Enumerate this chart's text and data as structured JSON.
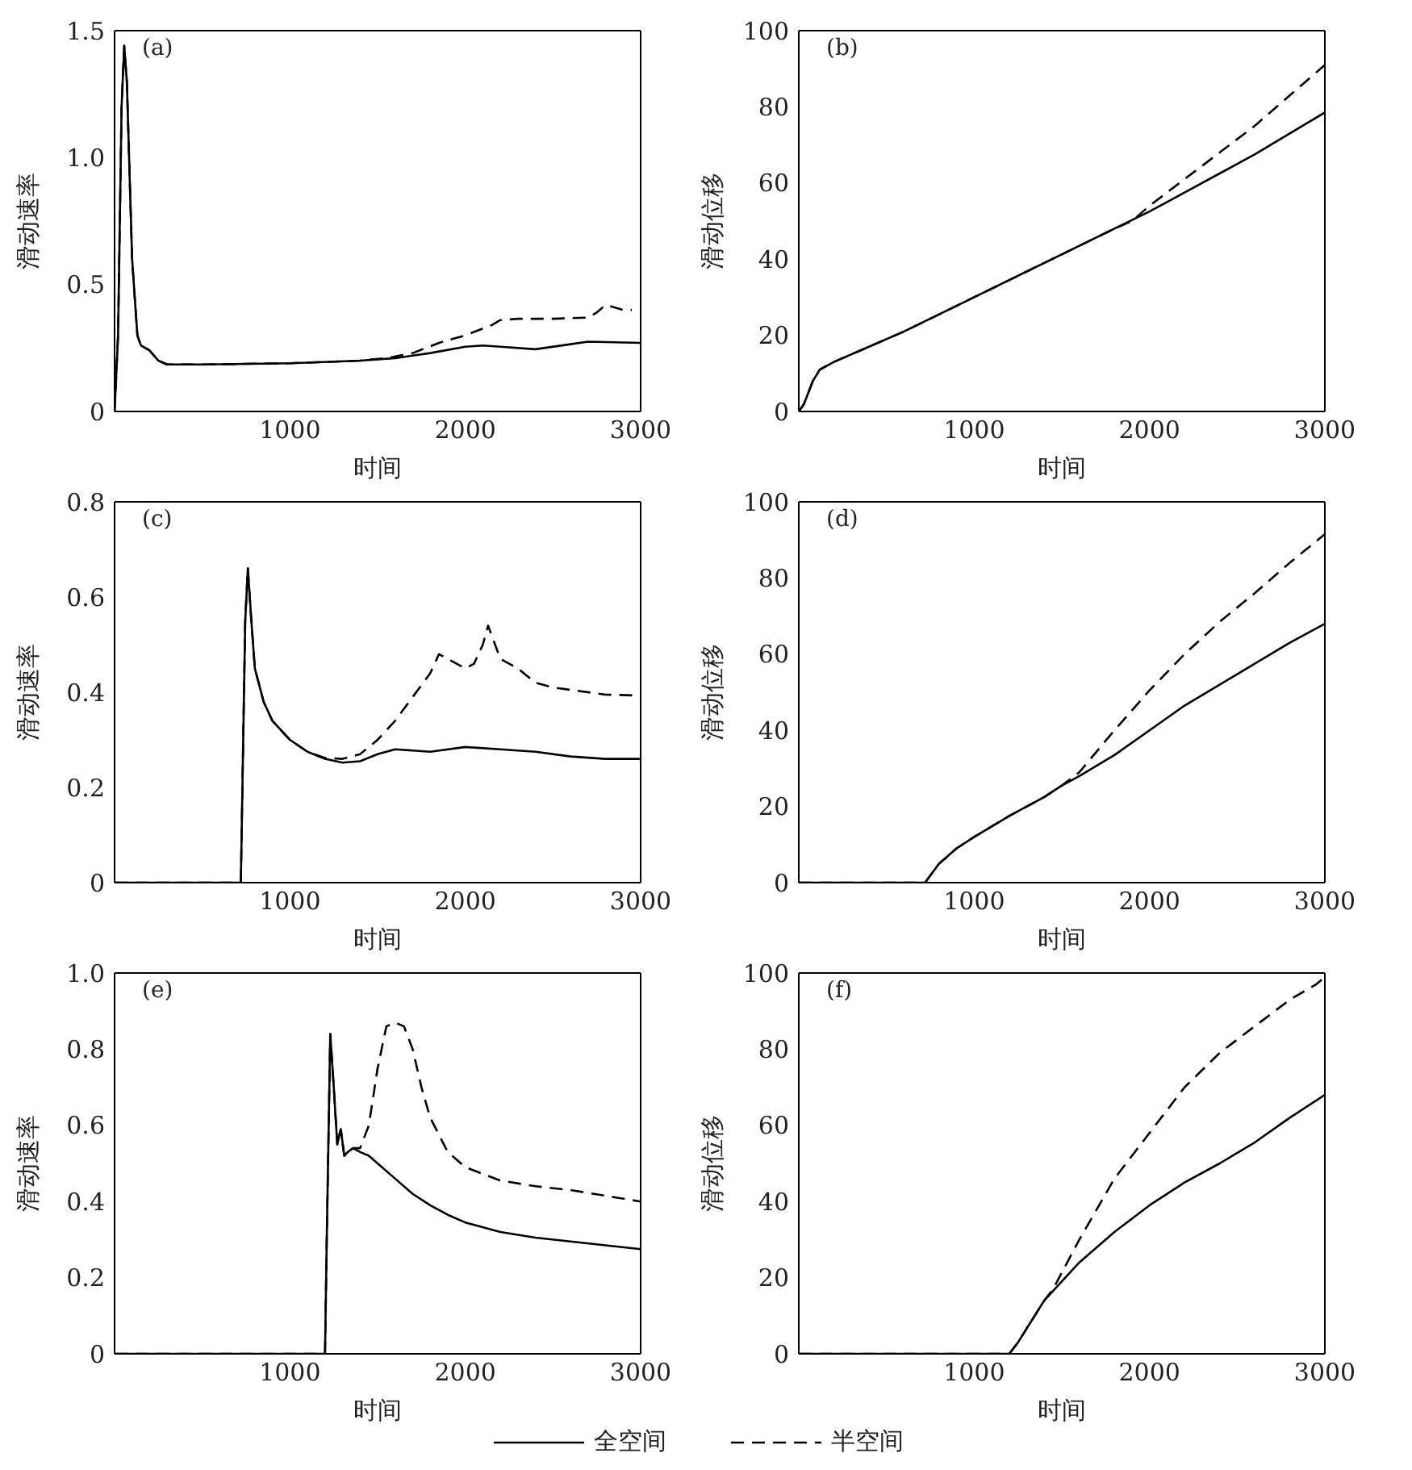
{
  "chart_data": [
    {
      "type": "line",
      "annotations": [
        "(a)"
      ],
      "xlabel": "时间",
      "ylabel": "滑动速率",
      "xlim": [
        0,
        3000
      ],
      "xticks": [
        1000,
        2000,
        3000
      ],
      "ylim": [
        0,
        1.5
      ],
      "yticks": [
        0,
        0.5,
        {
          "value": 1,
          "label": "1.0"
        },
        1.5
      ],
      "marker": "none",
      "series": [
        {
          "color": "#000000",
          "line_style": "solid",
          "x": [
            0,
            20,
            40,
            55,
            70,
            100,
            130,
            150,
            200,
            250,
            300,
            500,
            1000,
            1400,
            1600,
            1800,
            2000,
            2100,
            2200,
            2400,
            2600,
            2700,
            3000
          ],
          "values": [
            0,
            0.3,
            1.2,
            1.44,
            1.3,
            0.6,
            0.3,
            0.26,
            0.24,
            0.2,
            0.185,
            0.185,
            0.19,
            0.2,
            0.21,
            0.23,
            0.255,
            0.26,
            0.255,
            0.245,
            0.265,
            0.275,
            0.27
          ]
        },
        {
          "color": "#000000",
          "line_style": "dashed",
          "x": [
            0,
            20,
            40,
            55,
            70,
            100,
            130,
            150,
            200,
            250,
            300,
            500,
            1000,
            1400,
            1550,
            1700,
            1850,
            2000,
            2150,
            2200,
            2300,
            2500,
            2700,
            2750,
            2800,
            2850,
            2900,
            2950
          ],
          "values": [
            0,
            0.3,
            1.2,
            1.44,
            1.3,
            0.6,
            0.3,
            0.26,
            0.24,
            0.2,
            0.185,
            0.185,
            0.19,
            0.2,
            0.21,
            0.23,
            0.27,
            0.3,
            0.34,
            0.36,
            0.365,
            0.365,
            0.37,
            0.39,
            0.42,
            0.41,
            0.4,
            0.4
          ]
        }
      ]
    },
    {
      "type": "line",
      "annotations": [
        "(b)"
      ],
      "xlabel": "时间",
      "ylabel": "滑动位移",
      "xlim": [
        0,
        3000
      ],
      "xticks": [
        1000,
        2000,
        3000
      ],
      "ylim": [
        0,
        100
      ],
      "yticks": [
        0,
        20,
        40,
        60,
        80,
        100
      ],
      "marker": "none",
      "series": [
        {
          "color": "#000000",
          "line_style": "solid",
          "x": [
            0,
            30,
            80,
            120,
            200,
            400,
            600,
            800,
            1000,
            1200,
            1400,
            1600,
            1800,
            2000,
            2200,
            2400,
            2600,
            2800,
            3000
          ],
          "values": [
            0,
            2,
            8,
            11,
            13,
            17,
            21,
            25.5,
            30,
            34.5,
            39,
            43.5,
            48,
            52.5,
            57.5,
            62.5,
            67.5,
            73,
            78.5
          ]
        },
        {
          "color": "#000000",
          "line_style": "dashed",
          "x": [
            0,
            30,
            80,
            120,
            200,
            400,
            600,
            800,
            1000,
            1200,
            1400,
            1600,
            1800,
            1900,
            2000,
            2200,
            2400,
            2600,
            2800,
            3000
          ],
          "values": [
            0,
            2,
            8,
            11,
            13,
            17,
            21,
            25.5,
            30,
            34.5,
            39,
            43.5,
            48,
            50,
            54,
            61,
            68,
            75,
            83,
            91
          ]
        }
      ]
    },
    {
      "type": "line",
      "annotations": [
        "(c)"
      ],
      "xlabel": "时间",
      "ylabel": "滑动速率",
      "xlim": [
        0,
        3000
      ],
      "xticks": [
        1000,
        2000,
        3000
      ],
      "ylim": [
        0,
        0.8
      ],
      "yticks": [
        0,
        0.2,
        0.4,
        0.6,
        0.8
      ],
      "marker": "none",
      "series": [
        {
          "color": "#000000",
          "line_style": "solid",
          "x": [
            0,
            720,
            745,
            760,
            780,
            800,
            850,
            900,
            1000,
            1100,
            1200,
            1300,
            1400,
            1500,
            1600,
            1800,
            2000,
            2200,
            2400,
            2600,
            2800,
            3000
          ],
          "values": [
            0,
            0,
            0.55,
            0.66,
            0.55,
            0.45,
            0.38,
            0.34,
            0.3,
            0.275,
            0.26,
            0.252,
            0.255,
            0.27,
            0.28,
            0.275,
            0.285,
            0.28,
            0.275,
            0.265,
            0.26,
            0.26
          ]
        },
        {
          "color": "#000000",
          "line_style": "dashed",
          "x": [
            0,
            720,
            745,
            760,
            780,
            800,
            850,
            900,
            1000,
            1100,
            1200,
            1300,
            1400,
            1500,
            1600,
            1700,
            1800,
            1850,
            1900,
            2000,
            2050,
            2100,
            2130,
            2170,
            2200,
            2300,
            2400,
            2500,
            2600,
            2800,
            3000
          ],
          "values": [
            0,
            0,
            0.55,
            0.66,
            0.55,
            0.45,
            0.38,
            0.34,
            0.3,
            0.275,
            0.262,
            0.26,
            0.27,
            0.3,
            0.34,
            0.39,
            0.44,
            0.48,
            0.47,
            0.45,
            0.46,
            0.5,
            0.54,
            0.5,
            0.47,
            0.45,
            0.42,
            0.41,
            0.405,
            0.395,
            0.393
          ]
        }
      ]
    },
    {
      "type": "line",
      "annotations": [
        "(d)"
      ],
      "xlabel": "时间",
      "ylabel": "滑动位移",
      "xlim": [
        0,
        3000
      ],
      "xticks": [
        1000,
        2000,
        3000
      ],
      "ylim": [
        0,
        100
      ],
      "yticks": [
        0,
        20,
        40,
        60,
        80,
        100
      ],
      "marker": "none",
      "series": [
        {
          "color": "#000000",
          "line_style": "solid",
          "x": [
            0,
            720,
            800,
            900,
            1000,
            1200,
            1400,
            1500,
            1600,
            1800,
            2000,
            2200,
            2400,
            2600,
            2800,
            3000
          ],
          "values": [
            0,
            0,
            5,
            9,
            12,
            17.5,
            22.5,
            25.5,
            28,
            33.5,
            40,
            46.5,
            52,
            57.5,
            63,
            68
          ]
        },
        {
          "color": "#000000",
          "line_style": "dashed",
          "x": [
            0,
            720,
            800,
            900,
            1000,
            1200,
            1400,
            1500,
            1600,
            1800,
            2000,
            2200,
            2400,
            2600,
            2800,
            3000
          ],
          "values": [
            0,
            0,
            5,
            9,
            12,
            17.5,
            22.5,
            25.5,
            29,
            40,
            50.5,
            60,
            68.5,
            76,
            84,
            91.5
          ]
        }
      ]
    },
    {
      "type": "line",
      "annotations": [
        "(e)"
      ],
      "xlabel": "时间",
      "ylabel": "滑动速率",
      "xlim": [
        0,
        3000
      ],
      "xticks": [
        1000,
        2000,
        3000
      ],
      "ylim": [
        0,
        1
      ],
      "yticks": [
        0,
        0.2,
        0.4,
        0.6,
        0.8,
        {
          "value": 1,
          "label": "1.0"
        }
      ],
      "marker": "none",
      "series": [
        {
          "color": "#000000",
          "line_style": "solid",
          "x": [
            0,
            1200,
            1210,
            1230,
            1250,
            1270,
            1290,
            1310,
            1330,
            1360,
            1400,
            1450,
            1500,
            1600,
            1700,
            1800,
            1900,
            2000,
            2200,
            2400,
            2600,
            2800,
            3000
          ],
          "values": [
            0,
            0,
            0.3,
            0.84,
            0.7,
            0.55,
            0.59,
            0.52,
            0.53,
            0.54,
            0.53,
            0.52,
            0.5,
            0.46,
            0.42,
            0.39,
            0.365,
            0.345,
            0.32,
            0.305,
            0.295,
            0.285,
            0.275
          ]
        },
        {
          "color": "#000000",
          "line_style": "dashed",
          "x": [
            0,
            1200,
            1210,
            1230,
            1250,
            1270,
            1290,
            1310,
            1330,
            1360,
            1400,
            1450,
            1500,
            1550,
            1600,
            1650,
            1700,
            1750,
            1800,
            1900,
            2000,
            2200,
            2400,
            2600,
            2800,
            3000
          ],
          "values": [
            0,
            0,
            0.3,
            0.84,
            0.7,
            0.55,
            0.59,
            0.52,
            0.53,
            0.54,
            0.54,
            0.6,
            0.75,
            0.86,
            0.87,
            0.86,
            0.8,
            0.7,
            0.62,
            0.53,
            0.49,
            0.455,
            0.44,
            0.43,
            0.415,
            0.4
          ]
        }
      ]
    },
    {
      "type": "line",
      "annotations": [
        "(f)"
      ],
      "xlabel": "时间",
      "ylabel": "滑动位移",
      "xlim": [
        0,
        3000
      ],
      "xticks": [
        1000,
        2000,
        3000
      ],
      "ylim": [
        0,
        100
      ],
      "yticks": [
        0,
        20,
        40,
        60,
        80,
        100
      ],
      "marker": "none",
      "legend": "bottom",
      "series": [
        {
          "name": "全空间",
          "color": "#000000",
          "line_style": "solid",
          "x": [
            0,
            1200,
            1250,
            1400,
            1600,
            1800,
            2000,
            2200,
            2400,
            2600,
            2800,
            3000
          ],
          "values": [
            0,
            0,
            3,
            14,
            24,
            32,
            39,
            45,
            50,
            55.5,
            62,
            68
          ]
        },
        {
          "name": "半空间",
          "color": "#000000",
          "line_style": "dashed",
          "x": [
            0,
            1200,
            1250,
            1400,
            1450,
            1600,
            1700,
            1800,
            2000,
            2200,
            2400,
            2600,
            2800,
            2950,
            3000
          ],
          "values": [
            0,
            0,
            3,
            14,
            17,
            30,
            38,
            46,
            58,
            70,
            79,
            86,
            93,
            97,
            99
          ]
        }
      ]
    }
  ]
}
